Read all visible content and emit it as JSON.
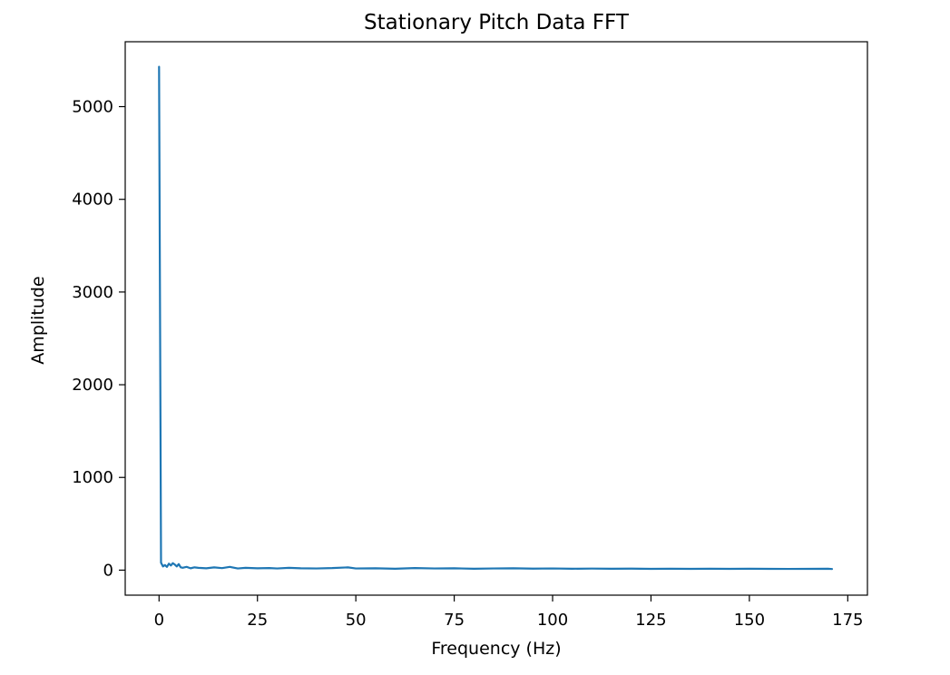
{
  "chart_data": {
    "type": "line",
    "title": "Stationary Pitch Data FFT",
    "xlabel": "Frequency (Hz)",
    "ylabel": "Amplitude",
    "xlim": [
      -8.6,
      180.0
    ],
    "ylim": [
      -270,
      5700
    ],
    "xticks": [
      0,
      25,
      50,
      75,
      100,
      125,
      150,
      175
    ],
    "yticks": [
      0,
      1000,
      2000,
      3000,
      4000,
      5000
    ],
    "grid": false,
    "legend": "none",
    "series": [
      {
        "color": "#1f77b4",
        "x": [
          0,
          0.5,
          1,
          1.5,
          2,
          2.5,
          3,
          3.5,
          4,
          4.5,
          5,
          5.5,
          6,
          7,
          8,
          9,
          10,
          12,
          14,
          16,
          18,
          20,
          22,
          25,
          28,
          30,
          33,
          36,
          40,
          44,
          48,
          50,
          55,
          60,
          65,
          70,
          75,
          80,
          85,
          90,
          95,
          100,
          105,
          110,
          115,
          120,
          125,
          130,
          135,
          140,
          145,
          150,
          155,
          160,
          165,
          170,
          171
        ],
        "y": [
          5430,
          80,
          40,
          55,
          35,
          70,
          50,
          75,
          60,
          40,
          65,
          30,
          25,
          35,
          20,
          30,
          25,
          20,
          30,
          22,
          35,
          18,
          25,
          20,
          22,
          18,
          25,
          20,
          18,
          22,
          30,
          18,
          20,
          15,
          22,
          18,
          20,
          15,
          18,
          20,
          16,
          18,
          15,
          17,
          15,
          16,
          14,
          15,
          14,
          15,
          14,
          15,
          14,
          13,
          14,
          15,
          12
        ]
      }
    ]
  }
}
